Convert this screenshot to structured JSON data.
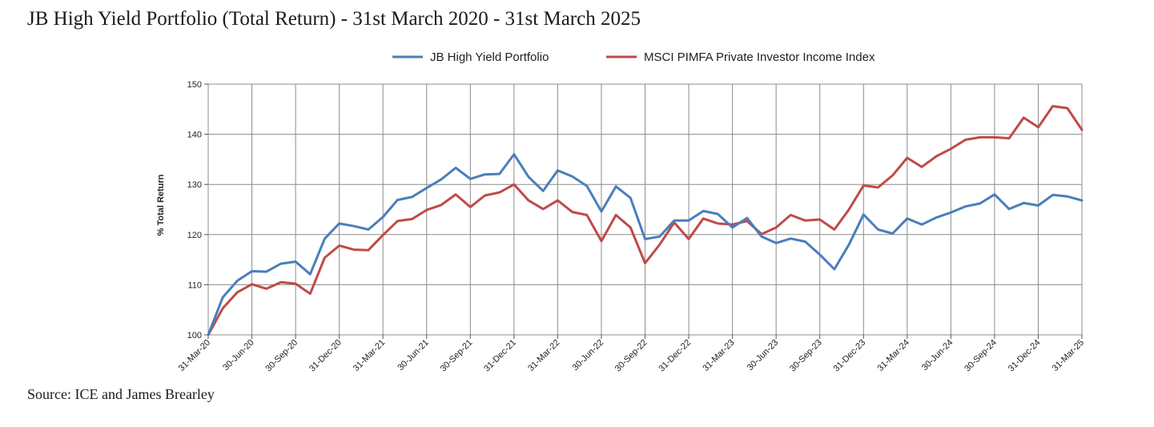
{
  "title": "JB High Yield Portfolio (Total Return) - 31st March 2020 - 31st March 2025",
  "source": "Source: ICE and James Brearley",
  "chart_data": {
    "type": "line",
    "title": "",
    "xlabel": "",
    "ylabel": "% Total Return",
    "ylim": [
      100,
      150
    ],
    "yticks": [
      100,
      110,
      120,
      130,
      140,
      150
    ],
    "grid": true,
    "legend_position": "top",
    "x_tick_labels": [
      "31-Mar-20",
      "30-Jun-20",
      "30-Sep-20",
      "31-Dec-20",
      "31-Mar-21",
      "30-Jun-21",
      "30-Sep-21",
      "31-Dec-21",
      "31-Mar-22",
      "30-Jun-22",
      "30-Sep-22",
      "31-Dec-22",
      "31-Mar-23",
      "30-Jun-23",
      "30-Sep-23",
      "31-Dec-23",
      "31-Mar-24",
      "30-Jun-24",
      "30-Sep-24",
      "31-Dec-24",
      "31-Mar-25"
    ],
    "x": [
      "Mar-20",
      "Apr-20",
      "May-20",
      "Jun-20",
      "Jul-20",
      "Aug-20",
      "Sep-20",
      "Oct-20",
      "Nov-20",
      "Dec-20",
      "Jan-21",
      "Feb-21",
      "Mar-21",
      "Apr-21",
      "May-21",
      "Jun-21",
      "Jul-21",
      "Aug-21",
      "Sep-21",
      "Oct-21",
      "Nov-21",
      "Dec-21",
      "Jan-22",
      "Feb-22",
      "Mar-22",
      "Apr-22",
      "May-22",
      "Jun-22",
      "Jul-22",
      "Aug-22",
      "Sep-22",
      "Oct-22",
      "Nov-22",
      "Dec-22",
      "Jan-23",
      "Feb-23",
      "Mar-23",
      "Apr-23",
      "May-23",
      "Jun-23",
      "Jul-23",
      "Aug-23",
      "Sep-23",
      "Oct-23",
      "Nov-23",
      "Dec-23",
      "Jan-24",
      "Feb-24",
      "Mar-24",
      "Apr-24",
      "May-24",
      "Jun-24",
      "Jul-24",
      "Aug-24",
      "Sep-24",
      "Oct-24",
      "Nov-24",
      "Dec-24",
      "Jan-25",
      "Feb-25",
      "Mar-25"
    ],
    "series": [
      {
        "name": "JB High Yield Portfolio",
        "color": "#4a7ebb",
        "values": [
          100,
          107.5,
          110.8,
          112.7,
          112.6,
          114.2,
          114.6,
          112.1,
          119.2,
          122.2,
          121.7,
          121.0,
          123.5,
          126.9,
          127.5,
          129.3,
          131.0,
          133.3,
          131.1,
          132.0,
          132.1,
          136.0,
          131.5,
          128.7,
          132.8,
          131.6,
          129.7,
          124.6,
          129.6,
          127.3,
          119.1,
          119.6,
          122.8,
          122.8,
          124.7,
          124.1,
          121.4,
          123.3,
          119.6,
          118.3,
          119.2,
          118.6,
          116.0,
          113.1,
          118.0,
          124.0,
          121.0,
          120.2,
          123.2,
          122.0,
          123.4,
          124.4,
          125.6,
          126.2,
          128.0,
          125.1,
          126.3,
          125.8,
          127.9,
          127.6,
          126.8
        ]
      },
      {
        "name": "MSCI PIMFA Private Investor Income Index",
        "color": "#be4b48",
        "values": [
          100,
          105.3,
          108.5,
          110.1,
          109.2,
          110.5,
          110.2,
          108.2,
          115.4,
          117.8,
          117.0,
          116.9,
          119.9,
          122.7,
          123.1,
          124.9,
          125.9,
          128.0,
          125.5,
          127.8,
          128.4,
          130.0,
          126.8,
          125.1,
          126.8,
          124.5,
          123.9,
          118.7,
          123.9,
          121.4,
          114.3,
          118.0,
          122.4,
          119.1,
          123.2,
          122.2,
          122.0,
          122.7,
          120.1,
          121.4,
          123.9,
          122.8,
          123.0,
          121.0,
          125.0,
          129.8,
          129.4,
          131.8,
          135.3,
          133.5,
          135.6,
          137.1,
          138.9,
          139.4,
          139.4,
          139.2,
          143.3,
          141.4,
          145.6,
          145.2,
          140.9
        ]
      }
    ]
  }
}
